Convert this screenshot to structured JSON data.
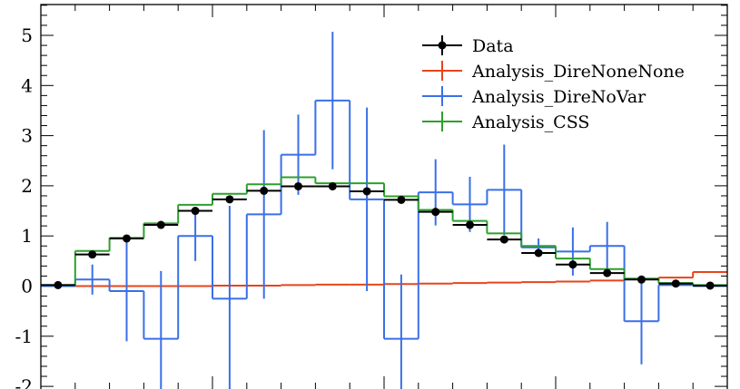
{
  "chart_data": {
    "type": "line",
    "title": "",
    "xlabel": "",
    "ylabel": "",
    "xlim": [
      0,
      20
    ],
    "ylim": [
      -2.2,
      5.55
    ],
    "yticks": [
      {
        "value": -2,
        "label": "-2"
      },
      {
        "value": -1,
        "label": "-1"
      },
      {
        "value": 0,
        "label": "0"
      },
      {
        "value": 1,
        "label": "1"
      },
      {
        "value": 2,
        "label": "2"
      },
      {
        "value": 3,
        "label": "3"
      },
      {
        "value": 4,
        "label": "4"
      },
      {
        "value": 5,
        "label": "5"
      }
    ],
    "x_tick_labels": "none",
    "legend_position": "top-right",
    "bins": [
      [
        0,
        1
      ],
      [
        1,
        2
      ],
      [
        2,
        3
      ],
      [
        3,
        4
      ],
      [
        4,
        5
      ],
      [
        5,
        6
      ],
      [
        6,
        7
      ],
      [
        7,
        8
      ],
      [
        8,
        9
      ],
      [
        9,
        10
      ],
      [
        10,
        11
      ],
      [
        11,
        12
      ],
      [
        12,
        13
      ],
      [
        13,
        14
      ],
      [
        14,
        15
      ],
      [
        15,
        16
      ],
      [
        16,
        17
      ],
      [
        17,
        18
      ],
      [
        18,
        19
      ],
      [
        19,
        20
      ]
    ],
    "series": [
      {
        "name": "Data",
        "color": "#000000",
        "style": "points",
        "values": [
          0.02,
          0.63,
          0.95,
          1.22,
          1.5,
          1.73,
          1.9,
          1.99,
          1.99,
          1.89,
          1.72,
          1.48,
          1.22,
          0.93,
          0.66,
          0.43,
          0.26,
          0.13,
          0.05,
          0.01
        ],
        "errors": [
          0.02,
          0.03,
          0.03,
          0.03,
          0.03,
          0.04,
          0.04,
          0.04,
          0.04,
          0.04,
          0.03,
          0.03,
          0.03,
          0.03,
          0.03,
          0.02,
          0.02,
          0.02,
          0.01,
          0.01
        ]
      },
      {
        "name": "Analysis_DireNoneNone",
        "color": "#e8441a",
        "style": "histogram",
        "values": [
          0.0,
          0.0,
          0.0,
          0.0,
          0.0,
          0.01,
          0.01,
          0.02,
          0.03,
          0.03,
          0.04,
          0.05,
          0.06,
          0.07,
          0.08,
          0.09,
          0.11,
          0.14,
          0.17,
          0.28
        ],
        "errors": [
          0,
          0,
          0,
          0,
          0,
          0,
          0,
          0,
          0,
          0,
          0,
          0,
          0,
          0,
          0,
          0,
          0,
          0,
          0,
          0
        ]
      },
      {
        "name": "Analysis_DireNoVar",
        "color": "#3a6fe8",
        "style": "histogram",
        "values": [
          0.0,
          0.13,
          -0.1,
          -1.05,
          1.0,
          -0.25,
          1.43,
          2.62,
          3.7,
          1.73,
          -1.05,
          1.87,
          1.63,
          1.92,
          0.77,
          0.69,
          0.8,
          -0.7,
          0.02,
          0.0
        ],
        "errors": [
          0.0,
          0.3,
          1.0,
          1.35,
          0.5,
          1.85,
          1.68,
          0.8,
          1.37,
          1.83,
          1.28,
          0.66,
          0.55,
          0.9,
          0.18,
          0.48,
          0.48,
          0.86,
          0.0,
          0.0
        ]
      },
      {
        "name": "Analysis_CSS",
        "color": "#2ca02c",
        "style": "histogram",
        "values": [
          0.02,
          0.7,
          0.96,
          1.25,
          1.62,
          1.84,
          2.03,
          2.17,
          2.05,
          2.05,
          1.79,
          1.52,
          1.3,
          1.05,
          0.8,
          0.55,
          0.34,
          0.15,
          0.06,
          0.02
        ],
        "errors": [
          0,
          0,
          0,
          0,
          0,
          0,
          0,
          0,
          0,
          0,
          0,
          0,
          0,
          0,
          0,
          0,
          0,
          0,
          0,
          0
        ]
      }
    ]
  }
}
